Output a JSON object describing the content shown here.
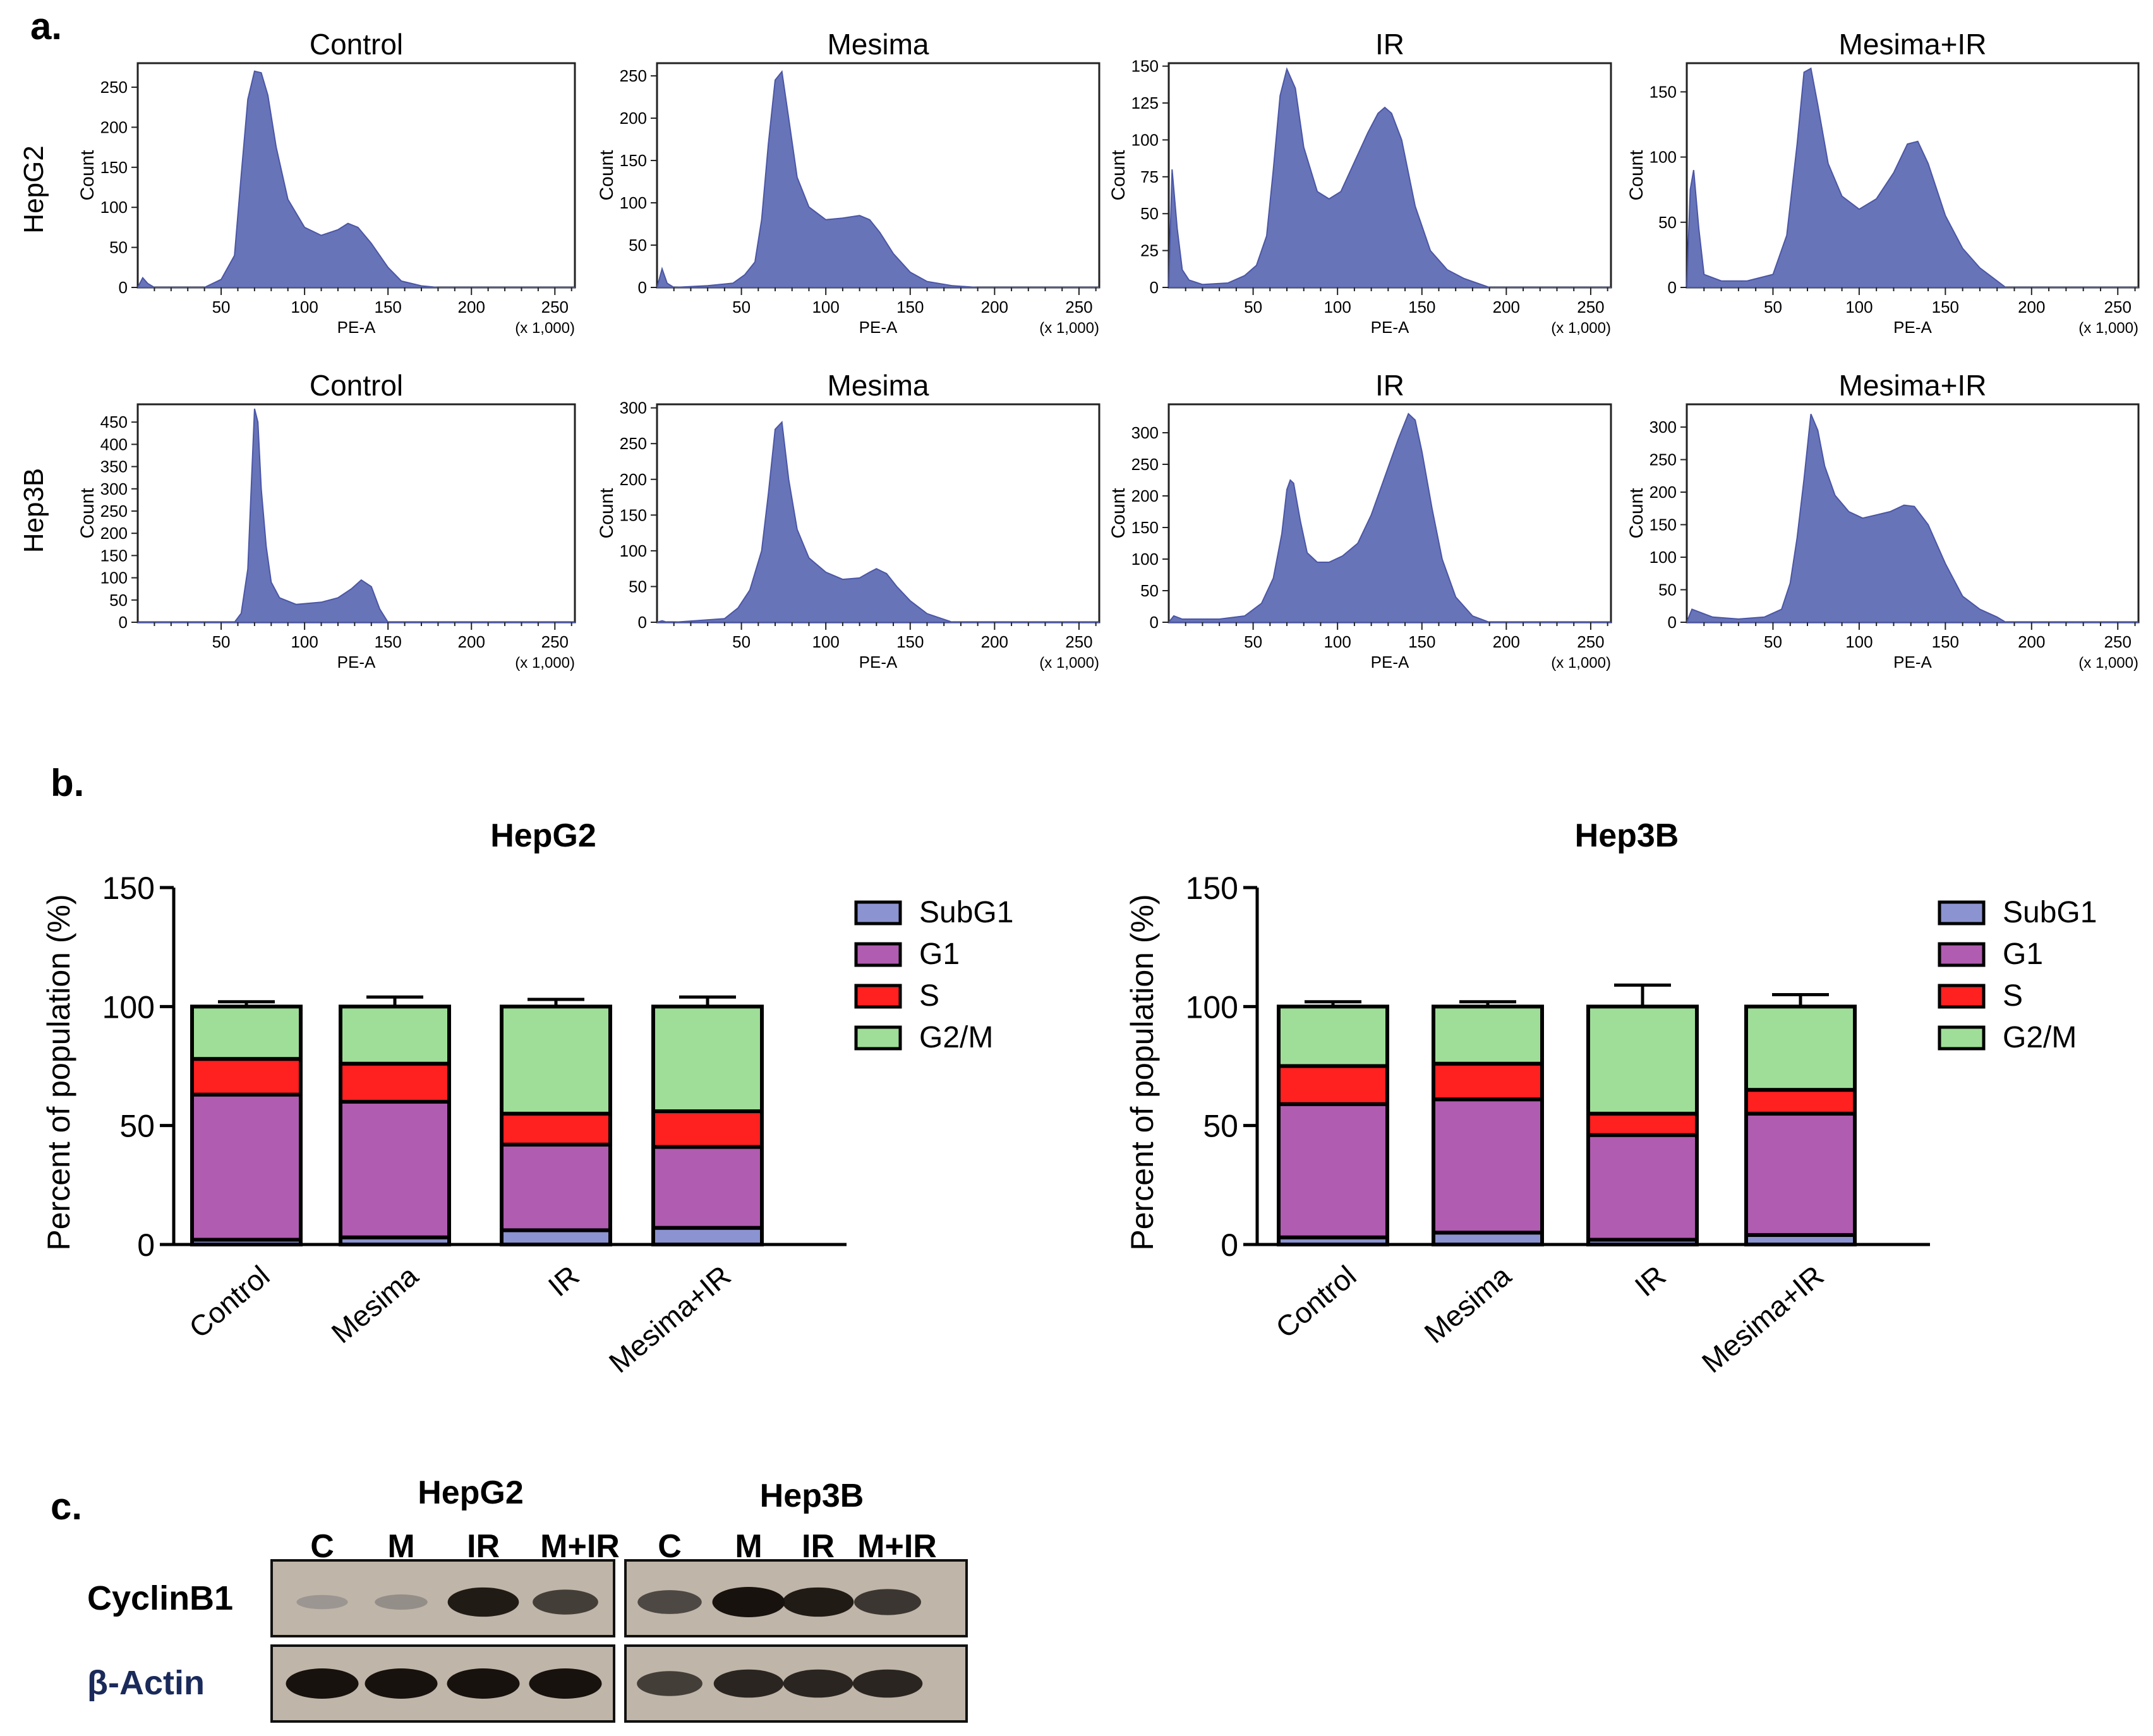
{
  "panel_labels": {
    "a": "a.",
    "b": "b.",
    "c": "c."
  },
  "colors": {
    "histogram_fill": "#6874b8",
    "histogram_edge": "#4a56a6",
    "subg1": "#8c93d1",
    "g1": "#b05cb0",
    "s": "#ff2020",
    "g2m": "#9fde98",
    "blot_bg": "#bfb5a8"
  },
  "chart_data": [
    {
      "type": "area",
      "id": "histograms",
      "row_labels": [
        "HepG2",
        "Hep3B"
      ],
      "xlabel": "PE-A",
      "ylabel": "Count",
      "x_unit": "(x 1,000)",
      "x_ticks": [
        50,
        100,
        150,
        200,
        250
      ],
      "xlim": [
        0,
        262
      ],
      "panels": [
        {
          "row": 0,
          "title": "Control",
          "yticks": [
            0,
            50,
            100,
            150,
            200,
            250
          ],
          "ylim": [
            0,
            280
          ],
          "x": [
            0,
            3,
            6,
            10,
            40,
            50,
            58,
            62,
            66,
            70,
            74,
            78,
            83,
            90,
            100,
            110,
            120,
            126,
            132,
            140,
            150,
            158,
            170,
            180,
            262
          ],
          "y": [
            0,
            12,
            5,
            0,
            0,
            10,
            40,
            140,
            235,
            270,
            268,
            240,
            175,
            110,
            75,
            65,
            72,
            80,
            75,
            55,
            25,
            8,
            2,
            0,
            0
          ]
        },
        {
          "row": 0,
          "title": "Mesima",
          "yticks": [
            0,
            50,
            100,
            150,
            200,
            250
          ],
          "ylim": [
            0,
            265
          ],
          "x": [
            0,
            3,
            6,
            10,
            30,
            45,
            52,
            58,
            62,
            66,
            70,
            74,
            78,
            83,
            90,
            100,
            110,
            120,
            126,
            132,
            140,
            150,
            160,
            175,
            190,
            262
          ],
          "y": [
            0,
            22,
            5,
            0,
            2,
            5,
            15,
            30,
            80,
            170,
            245,
            255,
            200,
            130,
            95,
            80,
            82,
            85,
            80,
            65,
            40,
            18,
            7,
            2,
            0,
            0
          ]
        },
        {
          "row": 0,
          "title": "IR",
          "yticks": [
            0,
            25,
            50,
            75,
            100,
            125,
            150
          ],
          "ylim": [
            0,
            152
          ],
          "x": [
            0,
            2,
            5,
            8,
            12,
            20,
            35,
            45,
            52,
            58,
            62,
            66,
            70,
            75,
            80,
            88,
            95,
            102,
            110,
            118,
            124,
            128,
            132,
            138,
            146,
            155,
            165,
            175,
            190,
            262
          ],
          "y": [
            0,
            80,
            40,
            12,
            5,
            2,
            3,
            8,
            15,
            35,
            80,
            130,
            148,
            135,
            95,
            65,
            60,
            65,
            85,
            105,
            118,
            122,
            118,
            100,
            55,
            25,
            12,
            6,
            0,
            0
          ]
        },
        {
          "row": 0,
          "title": "Mesima+IR",
          "yticks": [
            0,
            50,
            100,
            150
          ],
          "ylim": [
            0,
            172
          ],
          "x": [
            0,
            2,
            4,
            7,
            10,
            20,
            35,
            50,
            58,
            64,
            68,
            72,
            76,
            82,
            90,
            100,
            110,
            120,
            128,
            134,
            140,
            150,
            160,
            170,
            185,
            262
          ],
          "y": [
            0,
            75,
            90,
            45,
            10,
            5,
            5,
            10,
            40,
            110,
            165,
            168,
            140,
            95,
            70,
            60,
            68,
            88,
            110,
            112,
            95,
            55,
            30,
            15,
            0,
            0
          ]
        },
        {
          "row": 1,
          "title": "Control",
          "yticks": [
            0,
            50,
            100,
            150,
            200,
            250,
            300,
            350,
            400,
            450
          ],
          "ylim": [
            0,
            490
          ],
          "x": [
            0,
            58,
            62,
            66,
            68,
            70,
            72,
            74,
            77,
            80,
            85,
            95,
            110,
            120,
            128,
            134,
            140,
            145,
            150,
            262
          ],
          "y": [
            0,
            0,
            20,
            120,
            300,
            480,
            450,
            300,
            170,
            90,
            55,
            40,
            45,
            55,
            75,
            95,
            80,
            30,
            0,
            0
          ]
        },
        {
          "row": 1,
          "title": "Mesima",
          "yticks": [
            0,
            50,
            100,
            150,
            200,
            250,
            300
          ],
          "ylim": [
            0,
            305
          ],
          "x": [
            0,
            3,
            6,
            10,
            40,
            48,
            55,
            62,
            66,
            70,
            74,
            78,
            83,
            90,
            100,
            110,
            120,
            126,
            130,
            136,
            142,
            150,
            160,
            175,
            262
          ],
          "y": [
            0,
            2,
            0,
            0,
            5,
            20,
            45,
            100,
            180,
            270,
            280,
            200,
            130,
            90,
            70,
            60,
            62,
            70,
            75,
            68,
            50,
            30,
            12,
            0,
            0
          ]
        },
        {
          "row": 1,
          "title": "IR",
          "yticks": [
            0,
            50,
            100,
            150,
            200,
            250,
            300
          ],
          "ylim": [
            0,
            345
          ],
          "x": [
            0,
            3,
            8,
            15,
            30,
            45,
            55,
            62,
            67,
            70,
            72,
            74,
            78,
            82,
            88,
            95,
            103,
            112,
            120,
            128,
            136,
            142,
            146,
            150,
            156,
            162,
            170,
            180,
            190,
            262
          ],
          "y": [
            0,
            10,
            5,
            5,
            5,
            10,
            30,
            70,
            140,
            210,
            225,
            220,
            160,
            110,
            95,
            95,
            105,
            125,
            170,
            230,
            290,
            330,
            320,
            270,
            180,
            100,
            40,
            10,
            0,
            0
          ]
        },
        {
          "row": 1,
          "title": "Mesima+IR",
          "yticks": [
            0,
            50,
            100,
            150,
            200,
            250,
            300
          ],
          "ylim": [
            0,
            335
          ],
          "x": [
            0,
            3,
            8,
            15,
            30,
            45,
            55,
            60,
            64,
            68,
            72,
            76,
            80,
            86,
            94,
            102,
            110,
            118,
            126,
            132,
            140,
            150,
            160,
            170,
            180,
            185,
            262
          ],
          "y": [
            0,
            20,
            15,
            8,
            5,
            8,
            20,
            60,
            130,
            220,
            320,
            295,
            240,
            195,
            170,
            160,
            165,
            170,
            180,
            178,
            150,
            90,
            40,
            20,
            8,
            0,
            0
          ]
        }
      ]
    },
    {
      "type": "bar",
      "stacked": true,
      "id": "HepG2-bars",
      "title": "HepG2",
      "ylabel": "Percent of population (%)",
      "ylim": [
        0,
        150
      ],
      "yticks": [
        0,
        50,
        100,
        150
      ],
      "categories": [
        "Control",
        "Mesima",
        "IR",
        "Mesima+IR"
      ],
      "series": [
        {
          "name": "SubG1",
          "values": [
            2,
            3,
            6,
            7
          ],
          "errors": [
            1,
            1,
            1,
            1
          ]
        },
        {
          "name": "G1",
          "values": [
            61,
            57,
            36,
            34
          ],
          "errors": [
            3,
            5,
            3,
            5
          ]
        },
        {
          "name": "S",
          "values": [
            15,
            16,
            13,
            15
          ],
          "errors": [
            1,
            1,
            1,
            1
          ]
        },
        {
          "name": "G2/M",
          "values": [
            22,
            24,
            45,
            44
          ],
          "errors": [
            2,
            4,
            3,
            4
          ]
        }
      ]
    },
    {
      "type": "bar",
      "stacked": true,
      "id": "Hep3B-bars",
      "title": "Hep3B",
      "ylabel": "Percent of population (%)",
      "ylim": [
        0,
        150
      ],
      "yticks": [
        0,
        50,
        100,
        150
      ],
      "categories": [
        "Control",
        "Mesima",
        "IR",
        "Mesima+IR"
      ],
      "series": [
        {
          "name": "SubG1",
          "values": [
            3,
            5,
            2,
            4
          ],
          "errors": [
            1,
            1,
            1,
            1
          ]
        },
        {
          "name": "G1",
          "values": [
            56,
            56,
            44,
            51
          ],
          "errors": [
            2,
            2,
            10,
            6
          ]
        },
        {
          "name": "S",
          "values": [
            16,
            15,
            9,
            10
          ],
          "errors": [
            3,
            2,
            5,
            5
          ]
        },
        {
          "name": "G2/M",
          "values": [
            25,
            24,
            45,
            35
          ],
          "errors": [
            2,
            2,
            9,
            5
          ]
        }
      ]
    }
  ],
  "legend": [
    "SubG1",
    "G1",
    "S",
    "G2/M"
  ],
  "western_blot": {
    "groups": [
      "HepG2",
      "Hep3B"
    ],
    "lanes": [
      "C",
      "M",
      "IR",
      "M+IR",
      "C",
      "M",
      "IR",
      "M+IR"
    ],
    "rows": [
      {
        "label": "CyclinB1",
        "intensities": [
          0.25,
          0.3,
          0.95,
          0.75,
          0.7,
          1.0,
          0.95,
          0.8
        ]
      },
      {
        "label": "β-Actin",
        "intensities": [
          1.0,
          1.0,
          1.0,
          1.0,
          0.75,
          0.9,
          0.9,
          0.9
        ]
      }
    ]
  }
}
